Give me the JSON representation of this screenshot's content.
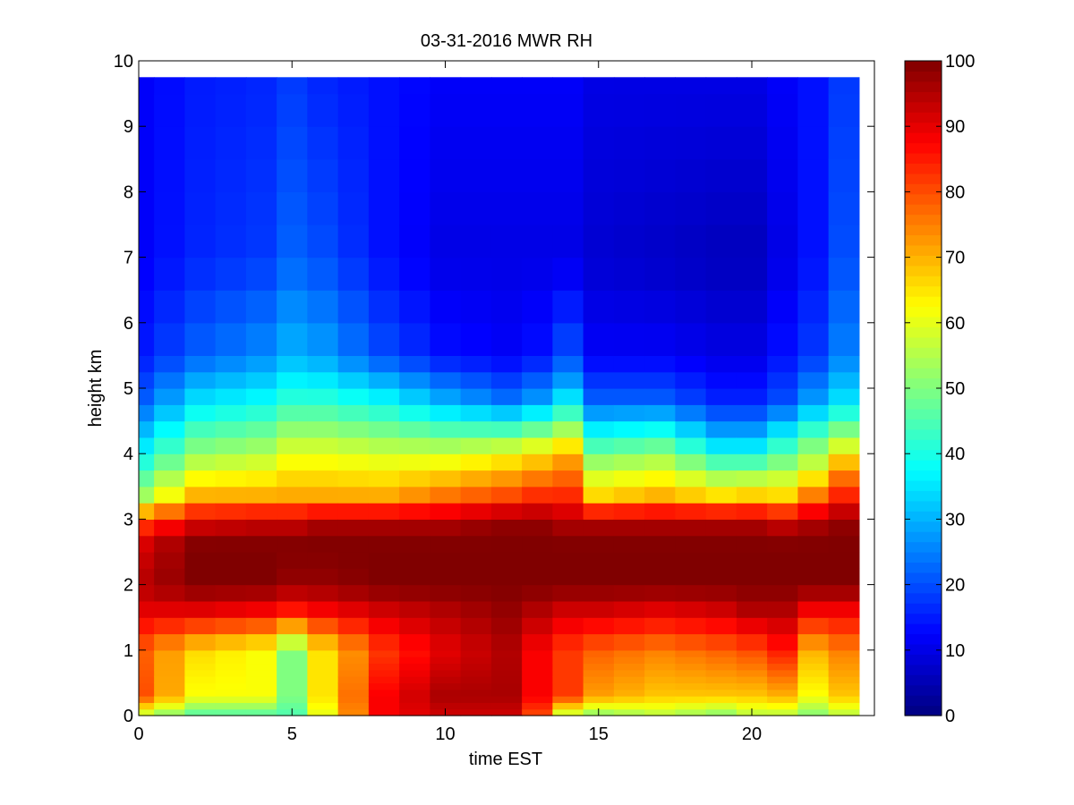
{
  "chart_data": {
    "type": "heatmap",
    "title": "03-31-2016 MWR RH",
    "xlabel": "time EST",
    "ylabel": "height km",
    "xlim": [
      0,
      24
    ],
    "ylim": [
      0,
      10
    ],
    "x_ticks": [
      0,
      5,
      10,
      15,
      20
    ],
    "y_ticks": [
      0,
      1,
      2,
      3,
      4,
      5,
      6,
      7,
      8,
      9,
      10
    ],
    "colorbar": {
      "range": [
        0,
        100
      ],
      "ticks": [
        0,
        10,
        20,
        30,
        40,
        50,
        60,
        70,
        80,
        90,
        100
      ],
      "colormap": "jet"
    },
    "grid": false,
    "time_columns": [
      0,
      1,
      2,
      3,
      4,
      5,
      6,
      7,
      8,
      9,
      10,
      11,
      12,
      13,
      14,
      15,
      16,
      17,
      18,
      19,
      20,
      21,
      22,
      23
    ],
    "height_levels": [
      0,
      0.1,
      0.2,
      0.3,
      0.4,
      0.5,
      0.6,
      0.7,
      0.8,
      0.9,
      1.0,
      1.25,
      1.5,
      1.75,
      2.0,
      2.25,
      2.5,
      2.75,
      3.0,
      3.25,
      3.5,
      3.75,
      4.0,
      4.25,
      4.5,
      4.75,
      5.0,
      5.25,
      5.5,
      6.0,
      6.5,
      7.0,
      7.5,
      8.0,
      8.5,
      9.0,
      9.5,
      9.75
    ],
    "rh_profiles": [
      {
        "hour": 0,
        "points": [
          [
            0,
            55
          ],
          [
            0.3,
            80
          ],
          [
            1.0,
            78
          ],
          [
            1.6,
            90
          ],
          [
            2.0,
            95
          ],
          [
            2.6,
            92
          ],
          [
            3.0,
            80
          ],
          [
            3.3,
            55
          ],
          [
            4.0,
            38
          ],
          [
            4.8,
            22
          ],
          [
            5.5,
            15
          ],
          [
            7.0,
            12
          ],
          [
            9.75,
            12
          ]
        ]
      },
      {
        "hour": 2,
        "points": [
          [
            0,
            45
          ],
          [
            0.3,
            62
          ],
          [
            1.0,
            66
          ],
          [
            1.6,
            90
          ],
          [
            2.0,
            100
          ],
          [
            2.6,
            100
          ],
          [
            3.0,
            90
          ],
          [
            3.3,
            72
          ],
          [
            4.0,
            52
          ],
          [
            4.8,
            35
          ],
          [
            5.5,
            22
          ],
          [
            7.0,
            16
          ],
          [
            9.75,
            15
          ]
        ]
      },
      {
        "hour": 4,
        "points": [
          [
            0,
            45
          ],
          [
            0.3,
            62
          ],
          [
            1.0,
            62
          ],
          [
            1.6,
            88
          ],
          [
            2.0,
            100
          ],
          [
            2.6,
            100
          ],
          [
            3.0,
            92
          ],
          [
            3.3,
            72
          ],
          [
            4.0,
            55
          ],
          [
            4.8,
            38
          ],
          [
            5.5,
            26
          ],
          [
            7.0,
            18
          ],
          [
            9.75,
            16
          ]
        ]
      },
      {
        "hour": 5,
        "points": [
          [
            0,
            45
          ],
          [
            0.3,
            50
          ],
          [
            1.0,
            50
          ],
          [
            1.6,
            85
          ],
          [
            2.0,
            98
          ],
          [
            2.6,
            100
          ],
          [
            3.0,
            92
          ],
          [
            3.3,
            72
          ],
          [
            4.0,
            60
          ],
          [
            4.8,
            42
          ],
          [
            5.5,
            30
          ],
          [
            7.0,
            22
          ],
          [
            9.75,
            18
          ]
        ]
      },
      {
        "hour": 6,
        "points": [
          [
            0,
            60
          ],
          [
            0.3,
            65
          ],
          [
            1.0,
            65
          ],
          [
            1.6,
            88
          ],
          [
            2.0,
            98
          ],
          [
            2.6,
            100
          ],
          [
            3.0,
            95
          ],
          [
            3.3,
            72
          ],
          [
            4.0,
            60
          ],
          [
            4.8,
            42
          ],
          [
            5.5,
            28
          ],
          [
            7.0,
            20
          ],
          [
            9.75,
            16
          ]
        ]
      },
      {
        "hour": 8,
        "points": [
          [
            0,
            88
          ],
          [
            0.3,
            88
          ],
          [
            1.0,
            82
          ],
          [
            1.6,
            92
          ],
          [
            2.0,
            100
          ],
          [
            2.6,
            100
          ],
          [
            3.0,
            95
          ],
          [
            3.3,
            72
          ],
          [
            4.0,
            58
          ],
          [
            4.8,
            38
          ],
          [
            5.5,
            20
          ],
          [
            7.0,
            14
          ],
          [
            9.75,
            14
          ]
        ]
      },
      {
        "hour": 10,
        "points": [
          [
            0,
            92
          ],
          [
            0.3,
            96
          ],
          [
            1.0,
            90
          ],
          [
            1.6,
            95
          ],
          [
            2.0,
            100
          ],
          [
            2.6,
            100
          ],
          [
            3.0,
            95
          ],
          [
            3.3,
            78
          ],
          [
            4.0,
            58
          ],
          [
            4.8,
            30
          ],
          [
            5.5,
            14
          ],
          [
            7.0,
            10
          ],
          [
            9.75,
            12
          ]
        ]
      },
      {
        "hour": 12,
        "points": [
          [
            0,
            92
          ],
          [
            0.3,
            96
          ],
          [
            1.0,
            95
          ],
          [
            1.6,
            98
          ],
          [
            2.0,
            100
          ],
          [
            2.6,
            100
          ],
          [
            3.0,
            98
          ],
          [
            3.3,
            82
          ],
          [
            4.0,
            62
          ],
          [
            4.8,
            24
          ],
          [
            5.5,
            12
          ],
          [
            7.0,
            10
          ],
          [
            9.75,
            12
          ]
        ]
      },
      {
        "hour": 13,
        "points": [
          [
            0,
            80
          ],
          [
            0.3,
            88
          ],
          [
            1.0,
            88
          ],
          [
            1.6,
            95
          ],
          [
            2.0,
            100
          ],
          [
            2.6,
            100
          ],
          [
            3.0,
            98
          ],
          [
            3.3,
            85
          ],
          [
            4.0,
            65
          ],
          [
            4.8,
            28
          ],
          [
            5.5,
            14
          ],
          [
            7.0,
            10
          ],
          [
            9.75,
            12
          ]
        ]
      },
      {
        "hour": 14,
        "points": [
          [
            0,
            55
          ],
          [
            0.3,
            82
          ],
          [
            1.0,
            82
          ],
          [
            1.6,
            92
          ],
          [
            2.0,
            100
          ],
          [
            2.6,
            100
          ],
          [
            3.0,
            95
          ],
          [
            3.3,
            85
          ],
          [
            4.0,
            70
          ],
          [
            4.5,
            48
          ],
          [
            5.0,
            30
          ],
          [
            5.5,
            20
          ],
          [
            7.0,
            10
          ],
          [
            9.75,
            12
          ]
        ]
      },
      {
        "hour": 15,
        "points": [
          [
            0,
            50
          ],
          [
            0.3,
            72
          ],
          [
            1.0,
            78
          ],
          [
            1.6,
            92
          ],
          [
            2.0,
            100
          ],
          [
            2.6,
            100
          ],
          [
            3.0,
            95
          ],
          [
            3.3,
            68
          ],
          [
            3.8,
            55
          ],
          [
            4.2,
            42
          ],
          [
            4.8,
            22
          ],
          [
            5.5,
            12
          ],
          [
            7.0,
            8
          ],
          [
            9.75,
            10
          ]
        ]
      },
      {
        "hour": 17,
        "points": [
          [
            0,
            55
          ],
          [
            0.3,
            68
          ],
          [
            1.0,
            75
          ],
          [
            1.6,
            90
          ],
          [
            2.0,
            100
          ],
          [
            2.6,
            100
          ],
          [
            3.0,
            95
          ],
          [
            3.3,
            72
          ],
          [
            3.8,
            58
          ],
          [
            4.2,
            45
          ],
          [
            4.8,
            22
          ],
          [
            5.5,
            12
          ],
          [
            7.0,
            7
          ],
          [
            9.75,
            10
          ]
        ]
      },
      {
        "hour": 19,
        "points": [
          [
            0,
            50
          ],
          [
            0.3,
            68
          ],
          [
            1.0,
            78
          ],
          [
            1.6,
            92
          ],
          [
            2.0,
            100
          ],
          [
            2.6,
            100
          ],
          [
            3.0,
            95
          ],
          [
            3.3,
            68
          ],
          [
            3.8,
            48
          ],
          [
            4.2,
            32
          ],
          [
            4.8,
            16
          ],
          [
            5.5,
            10
          ],
          [
            7.0,
            6
          ],
          [
            9.75,
            10
          ]
        ]
      },
      {
        "hour": 20,
        "points": [
          [
            0,
            55
          ],
          [
            0.3,
            68
          ],
          [
            1.0,
            80
          ],
          [
            1.6,
            95
          ],
          [
            2.0,
            100
          ],
          [
            2.6,
            100
          ],
          [
            3.0,
            95
          ],
          [
            3.3,
            70
          ],
          [
            3.8,
            48
          ],
          [
            4.2,
            32
          ],
          [
            4.8,
            16
          ],
          [
            5.5,
            10
          ],
          [
            7.0,
            6
          ],
          [
            9.75,
            10
          ]
        ]
      },
      {
        "hour": 21,
        "points": [
          [
            0,
            55
          ],
          [
            0.3,
            70
          ],
          [
            1.0,
            85
          ],
          [
            1.6,
            95
          ],
          [
            2.0,
            100
          ],
          [
            2.6,
            100
          ],
          [
            3.0,
            92
          ],
          [
            3.3,
            68
          ],
          [
            3.8,
            52
          ],
          [
            4.2,
            40
          ],
          [
            4.8,
            20
          ],
          [
            5.5,
            14
          ],
          [
            7.0,
            10
          ],
          [
            9.75,
            12
          ]
        ]
      },
      {
        "hour": 22,
        "points": [
          [
            0,
            50
          ],
          [
            0.3,
            62
          ],
          [
            1.0,
            70
          ],
          [
            1.6,
            88
          ],
          [
            2.0,
            100
          ],
          [
            2.6,
            100
          ],
          [
            3.0,
            95
          ],
          [
            3.3,
            78
          ],
          [
            3.8,
            58
          ],
          [
            4.2,
            48
          ],
          [
            4.8,
            28
          ],
          [
            5.5,
            18
          ],
          [
            7.0,
            14
          ],
          [
            9.75,
            14
          ]
        ]
      },
      {
        "hour": 23,
        "points": [
          [
            0,
            55
          ],
          [
            0.3,
            68
          ],
          [
            1.0,
            75
          ],
          [
            1.6,
            88
          ],
          [
            2.0,
            100
          ],
          [
            2.6,
            100
          ],
          [
            3.0,
            98
          ],
          [
            3.3,
            86
          ],
          [
            3.8,
            72
          ],
          [
            4.2,
            55
          ],
          [
            4.8,
            35
          ],
          [
            5.5,
            25
          ],
          [
            7.0,
            20
          ],
          [
            9.75,
            18
          ]
        ]
      }
    ]
  }
}
